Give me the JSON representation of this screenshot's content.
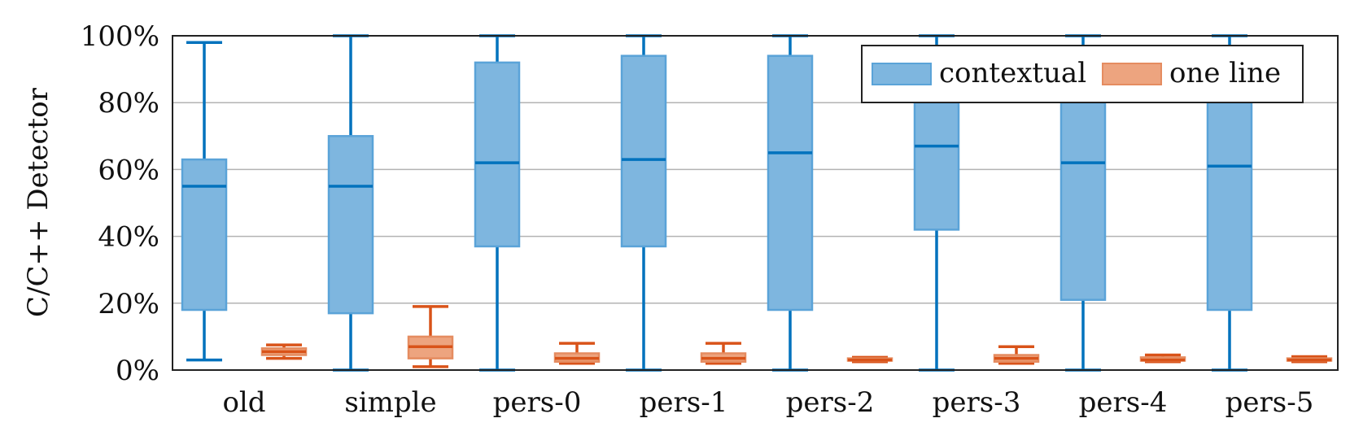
{
  "chart_data": {
    "type": "box",
    "ylabel": "C/C++ Detector",
    "ylim": [
      0,
      100
    ],
    "yticks": [
      0,
      20,
      40,
      60,
      80,
      100
    ],
    "ytick_labels": [
      "0%",
      "20%",
      "40%",
      "60%",
      "80%",
      "100%"
    ],
    "grid": "horizontal",
    "legend_position": "top-right",
    "categories": [
      "old",
      "simple",
      "pers-0",
      "pers-1",
      "pers-2",
      "pers-3",
      "pers-4",
      "pers-5"
    ],
    "series": [
      {
        "name": "contextual",
        "color": "#0072BD",
        "boxes": [
          {
            "min": 3,
            "q1": 18,
            "median": 55,
            "q3": 63,
            "max": 98
          },
          {
            "min": 0,
            "q1": 17,
            "median": 55,
            "q3": 70,
            "max": 100
          },
          {
            "min": 0,
            "q1": 37,
            "median": 62,
            "q3": 92,
            "max": 100
          },
          {
            "min": 0,
            "q1": 37,
            "median": 63,
            "q3": 94,
            "max": 100
          },
          {
            "min": 0,
            "q1": 18,
            "median": 65,
            "q3": 94,
            "max": 100
          },
          {
            "min": 0,
            "q1": 42,
            "median": 67,
            "q3": 80,
            "max": 100
          },
          {
            "min": 0,
            "q1": 21,
            "median": 62,
            "q3": 80,
            "max": 100
          },
          {
            "min": 0,
            "q1": 18,
            "median": 61,
            "q3": 80,
            "max": 100
          }
        ]
      },
      {
        "name": "one line",
        "color": "#D95319",
        "boxes": [
          {
            "min": 3.5,
            "q1": 4.5,
            "median": 5.5,
            "q3": 6.5,
            "max": 7.5
          },
          {
            "min": 1,
            "q1": 3.5,
            "median": 7,
            "q3": 10,
            "max": 19
          },
          {
            "min": 2,
            "q1": 2.5,
            "median": 3.5,
            "q3": 5,
            "max": 8
          },
          {
            "min": 2,
            "q1": 2.5,
            "median": 3.5,
            "q3": 5,
            "max": 8
          },
          {
            "min": 2.5,
            "q1": 2.8,
            "median": 3,
            "q3": 3.5,
            "max": 3.8
          },
          {
            "min": 2,
            "q1": 2.5,
            "median": 3.5,
            "q3": 4.5,
            "max": 7
          },
          {
            "min": 2.5,
            "q1": 2.8,
            "median": 3,
            "q3": 3.8,
            "max": 4.5
          },
          {
            "min": 2.5,
            "q1": 2.8,
            "median": 3,
            "q3": 3.5,
            "max": 4
          }
        ]
      }
    ]
  }
}
